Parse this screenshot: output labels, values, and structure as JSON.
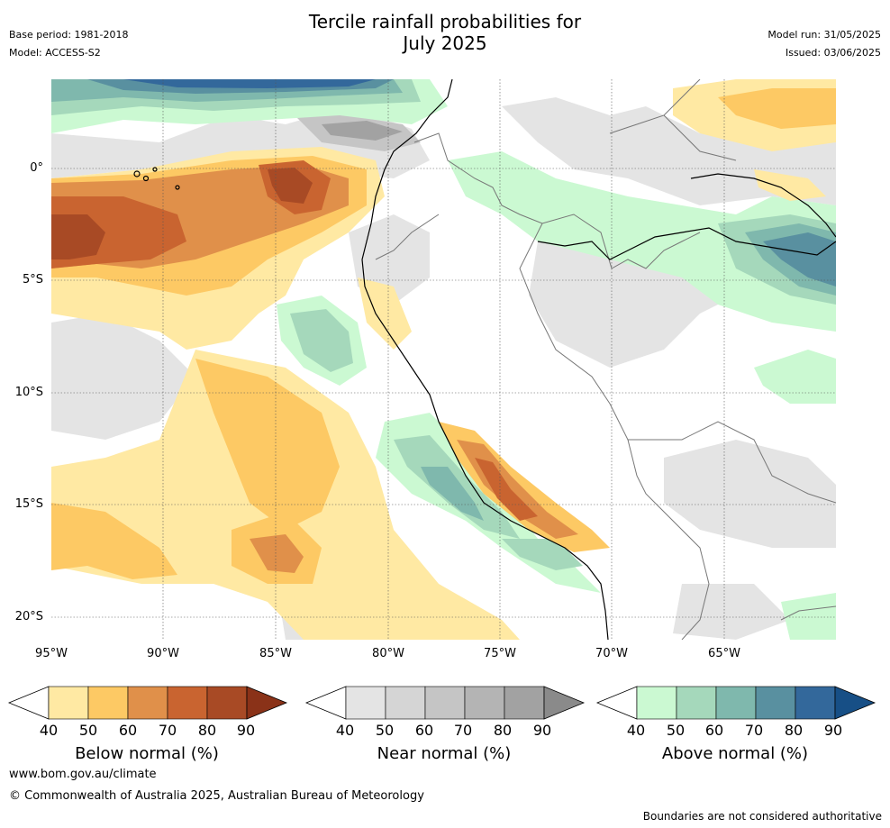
{
  "title_line1": "Tercile rainfall probabilities for",
  "title_line2": "July 2025",
  "base_period": "Base period: 1981-2018",
  "model": "Model: ACCESS-S2",
  "model_run": "Model run: 31/05/2025",
  "issued": "Issued: 03/06/2025",
  "lat_labels": [
    "0°",
    "5°S",
    "10°S",
    "15°S",
    "20°S"
  ],
  "lon_labels": [
    "95°W",
    "90°W",
    "85°W",
    "80°W",
    "75°W",
    "70°W",
    "65°W"
  ],
  "colorbars": [
    {
      "title": "Below normal (%)",
      "ticks": [
        "40",
        "50",
        "60",
        "70",
        "80",
        "90"
      ],
      "colors": [
        "#ffe9a3",
        "#fdc964",
        "#e0904a",
        "#c96430",
        "#a84a25",
        "#8a3218"
      ]
    },
    {
      "title": "Near normal (%)",
      "ticks": [
        "40",
        "50",
        "60",
        "70",
        "80",
        "90"
      ],
      "colors": [
        "#e4e4e4",
        "#d5d5d5",
        "#c5c5c5",
        "#b4b4b4",
        "#a2a2a2",
        "#8a8a8a"
      ]
    },
    {
      "title": "Above normal (%)",
      "ticks": [
        "40",
        "50",
        "60",
        "70",
        "80",
        "90"
      ],
      "colors": [
        "#cbf9d2",
        "#a5d8bb",
        "#7fb8ad",
        "#5990a0",
        "#33689b",
        "#174f86"
      ]
    }
  ],
  "footer_url": "www.bom.gov.au/climate",
  "copyright": "© Commonwealth of Australia 2025, Australian Bureau of Meteorology",
  "disclaimer": "Boundaries are not considered authoritative"
}
